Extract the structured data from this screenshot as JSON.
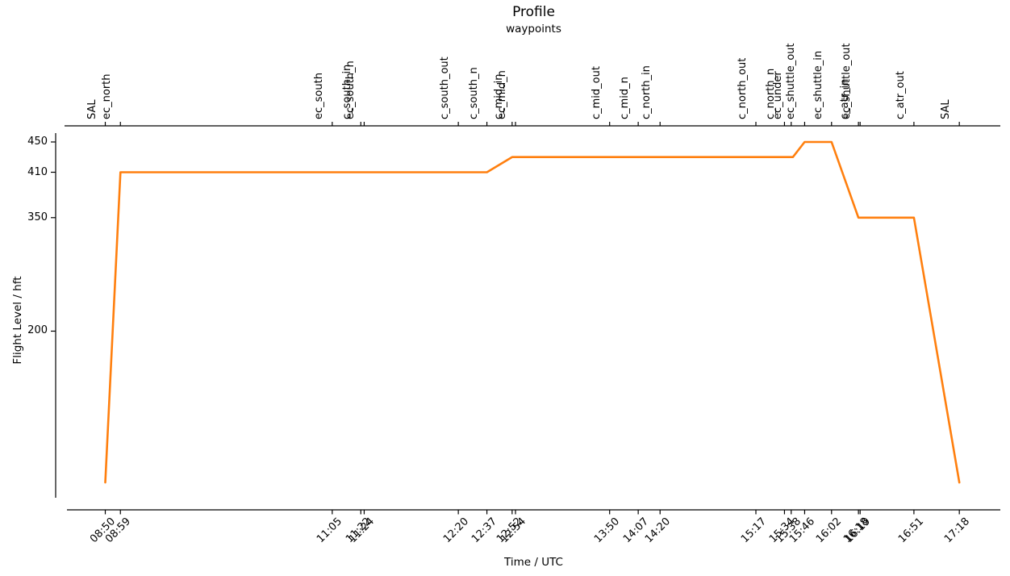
{
  "chart_data": {
    "type": "line",
    "title": "Profile",
    "subtitle": "waypoints",
    "xlabel": "Time / UTC",
    "ylabel": "Flight Level / hft",
    "line_color": "#ff7f0e",
    "grid": false,
    "legend": "none",
    "y_ticks": [
      450,
      410,
      350,
      200
    ],
    "y_axis_range": [
      0,
      475
    ],
    "x_axis_range": [
      "08:30",
      "17:40"
    ],
    "x_tick_rotation": 45,
    "waypoint_label_rotation": 90,
    "waypoints": [
      {
        "name": "SAL",
        "time": "08:50"
      },
      {
        "name": "ec_north",
        "time": "08:59"
      },
      {
        "name": "ec_south",
        "time": "11:05"
      },
      {
        "name": "c_south_in",
        "time": "11:22"
      },
      {
        "name": "ec_south_n",
        "time": "11:24"
      },
      {
        "name": "c_south_out",
        "time": "12:20"
      },
      {
        "name": "c_south_n",
        "time": "12:37"
      },
      {
        "name": "c_mid_in",
        "time": "12:52"
      },
      {
        "name": "ec_mid_n",
        "time": "12:54"
      },
      {
        "name": "c_mid_out",
        "time": "13:50"
      },
      {
        "name": "c_mid_n",
        "time": "14:07"
      },
      {
        "name": "c_north_in",
        "time": "14:20"
      },
      {
        "name": "c_north_out",
        "time": "15:17"
      },
      {
        "name": "c_north_n",
        "time": "15:34"
      },
      {
        "name": "ec_under",
        "time": "15:38"
      },
      {
        "name": "ec_shuttle_out",
        "time": "15:46"
      },
      {
        "name": "ec_shuttle_in",
        "time": "16:02"
      },
      {
        "name": "c_atr_in",
        "time": "16:18"
      },
      {
        "name": "ec_shuttle_out",
        "time": "16:19"
      },
      {
        "name": "c_atr_out",
        "time": "16:51"
      },
      {
        "name": "SAL",
        "time": "17:18"
      }
    ],
    "profile": [
      {
        "time": "08:50",
        "fl": 0
      },
      {
        "time": "08:59",
        "fl": 410
      },
      {
        "time": "12:37",
        "fl": 410
      },
      {
        "time": "12:52",
        "fl": 430
      },
      {
        "time": "15:39",
        "fl": 430
      },
      {
        "time": "15:46",
        "fl": 450
      },
      {
        "time": "16:02",
        "fl": 450
      },
      {
        "time": "16:18",
        "fl": 350
      },
      {
        "time": "16:51",
        "fl": 350
      },
      {
        "time": "17:18",
        "fl": 0
      }
    ]
  }
}
